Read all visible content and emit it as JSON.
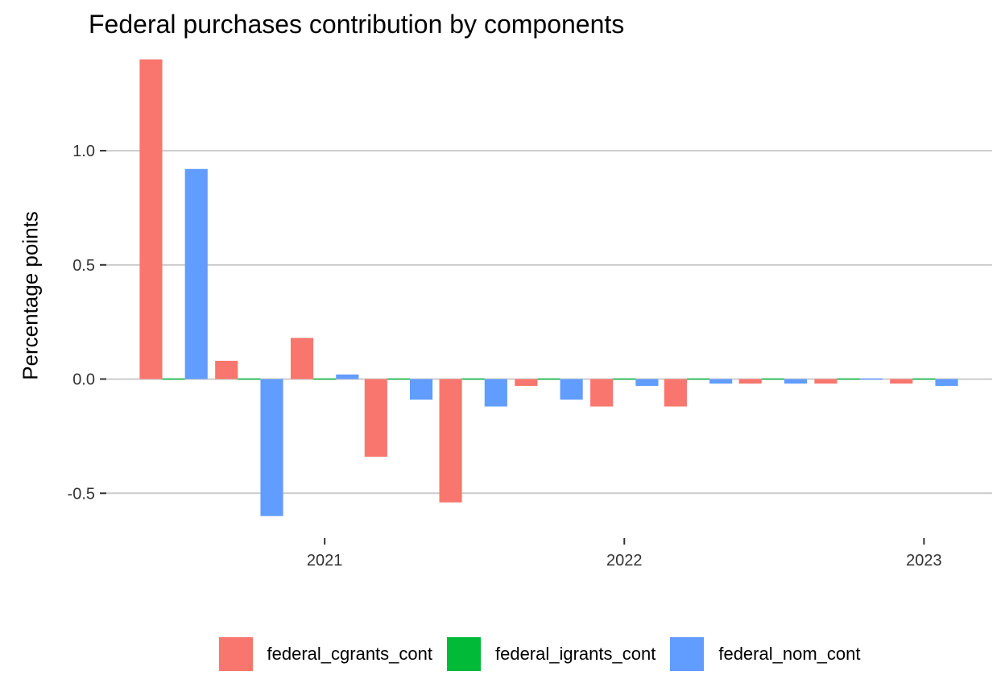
{
  "chart_data": {
    "type": "bar",
    "title": "Federal purchases contribution by components",
    "xlabel": "",
    "ylabel": "Percentage points",
    "ylim": [
      -0.64,
      1.42
    ],
    "yticks": [
      -0.5,
      0.0,
      0.5,
      1.0
    ],
    "ytick_labels": [
      "-0.5",
      "0.0",
      "0.5",
      "1.0"
    ],
    "xlim": [
      "2020-04-10",
      "2023-03-25"
    ],
    "xticks": [
      "2021-01-01",
      "2022-01-01",
      "2023-01-01"
    ],
    "xtick_labels": [
      "2021",
      "2022",
      "2023"
    ],
    "grid": true,
    "legend_position": "bottom",
    "x": [
      "2020-07-01",
      "2020-10-01",
      "2021-01-01",
      "2021-04-01",
      "2021-07-01",
      "2021-10-01",
      "2022-01-01",
      "2022-04-01",
      "2022-07-01",
      "2022-10-01",
      "2023-01-01"
    ],
    "series": [
      {
        "name": "federal_cgrants_cont",
        "color": "#F8766D",
        "values": [
          1.4,
          0.08,
          0.18,
          -0.34,
          -0.54,
          -0.03,
          -0.12,
          -0.12,
          -0.02,
          -0.02,
          -0.02
        ]
      },
      {
        "name": "federal_igrants_cont",
        "color": "#00BA38",
        "values": [
          0.0,
          0.0,
          0.0,
          0.0,
          -0.005,
          0.0,
          0.0,
          0.0,
          0.0,
          0.0,
          -0.005
        ]
      },
      {
        "name": "federal_nom_cont",
        "color": "#619CFF",
        "values": [
          0.92,
          -0.6,
          0.02,
          -0.09,
          -0.12,
          -0.09,
          -0.03,
          -0.02,
          -0.02,
          -0.005,
          -0.03
        ]
      }
    ]
  }
}
